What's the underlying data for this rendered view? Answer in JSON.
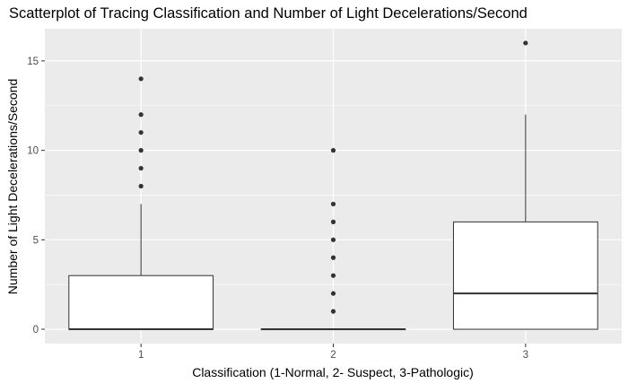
{
  "chart_data": {
    "type": "boxplot",
    "title": "Scatterplot of Tracing Classification and Number of Light Decelerations/Second",
    "xlabel": "Classification (1-Normal, 2- Suspect, 3-Pathologic)",
    "ylabel": "Number of Light Decelerations/Second",
    "categories": [
      "1",
      "2",
      "3"
    ],
    "ylim": [
      -0.8,
      16.8
    ],
    "yticks": [
      0,
      5,
      10,
      15
    ],
    "ytick_labels": [
      "0",
      "5",
      "10",
      "15"
    ],
    "grid": true,
    "legend": "none",
    "colors": {
      "panel_bg": "#ebebeb",
      "grid_major": "#ffffff",
      "box_fill": "#ffffff",
      "box_stroke": "#333333",
      "outlier": "#333333",
      "axis_text": "#4d4d4d",
      "title_text": "#000000"
    },
    "boxes": [
      {
        "category": "1",
        "min": 0,
        "q1": 0,
        "median": 0,
        "q3": 3,
        "max": 7,
        "outliers": [
          8,
          9,
          10,
          11,
          12,
          14
        ]
      },
      {
        "category": "2",
        "min": 0,
        "q1": 0,
        "median": 0,
        "q3": 0,
        "max": 0,
        "outliers": [
          1,
          2,
          3,
          4,
          5,
          6,
          7,
          10
        ]
      },
      {
        "category": "3",
        "min": 0,
        "q1": 0,
        "median": 2,
        "q3": 6,
        "max": 12,
        "outliers": [
          16
        ]
      }
    ]
  }
}
